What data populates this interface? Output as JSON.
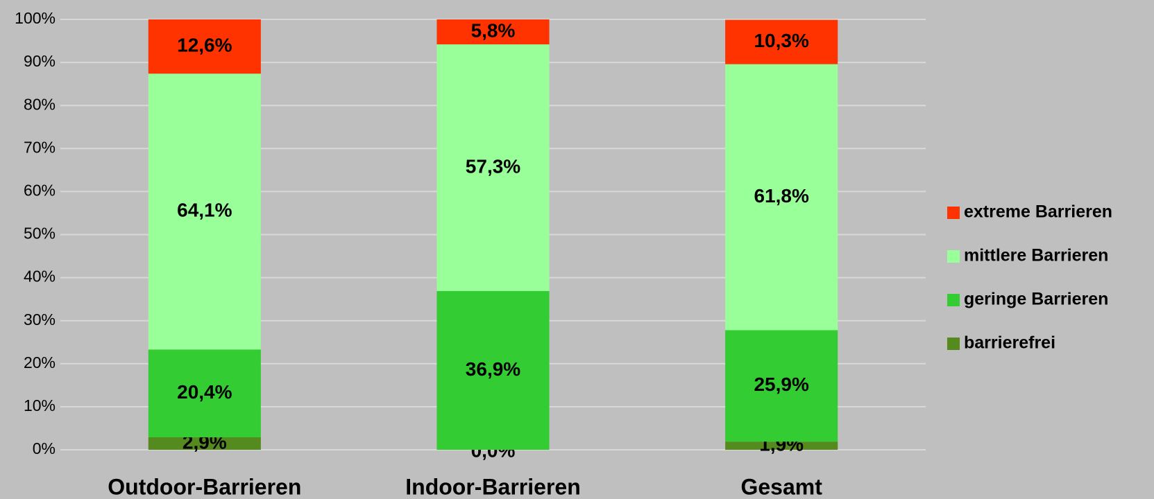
{
  "chart_data": {
    "type": "stacked_bar",
    "categories": [
      "Outdoor-Barrieren",
      "Indoor-Barrieren",
      "Gesamt"
    ],
    "series": [
      {
        "name": "barrierefrei",
        "color": "#548a1e",
        "values": [
          2.9,
          0.0,
          1.9
        ],
        "value_labels": [
          "2,9%",
          "0,0%",
          "1,9%"
        ]
      },
      {
        "name": "geringe Barrieren",
        "color": "#33cc33",
        "values": [
          20.4,
          36.9,
          25.9
        ],
        "value_labels": [
          "20,4%",
          "36,9%",
          "25,9%"
        ]
      },
      {
        "name": "mittlere Barrieren",
        "color": "#99ff99",
        "values": [
          64.1,
          57.3,
          61.8
        ],
        "value_labels": [
          "64,1%",
          "57,3%",
          "61,8%"
        ]
      },
      {
        "name": "extreme Barrieren",
        "color": "#ff3300",
        "values": [
          12.6,
          5.8,
          10.3
        ],
        "value_labels": [
          "12,6%",
          "5,8%",
          "10,3%"
        ]
      }
    ],
    "ylim": [
      0,
      100
    ],
    "yticks": [
      {
        "value": 0,
        "label": "0%"
      },
      {
        "value": 10,
        "label": "10%"
      },
      {
        "value": 20,
        "label": "20%"
      },
      {
        "value": 30,
        "label": "30%"
      },
      {
        "value": 40,
        "label": "40%"
      },
      {
        "value": 50,
        "label": "50%"
      },
      {
        "value": 60,
        "label": "60%"
      },
      {
        "value": 70,
        "label": "70%"
      },
      {
        "value": 80,
        "label": "80%"
      },
      {
        "value": 90,
        "label": "90%"
      },
      {
        "value": 100,
        "label": "100%"
      }
    ],
    "grid": true,
    "legend": "right"
  }
}
